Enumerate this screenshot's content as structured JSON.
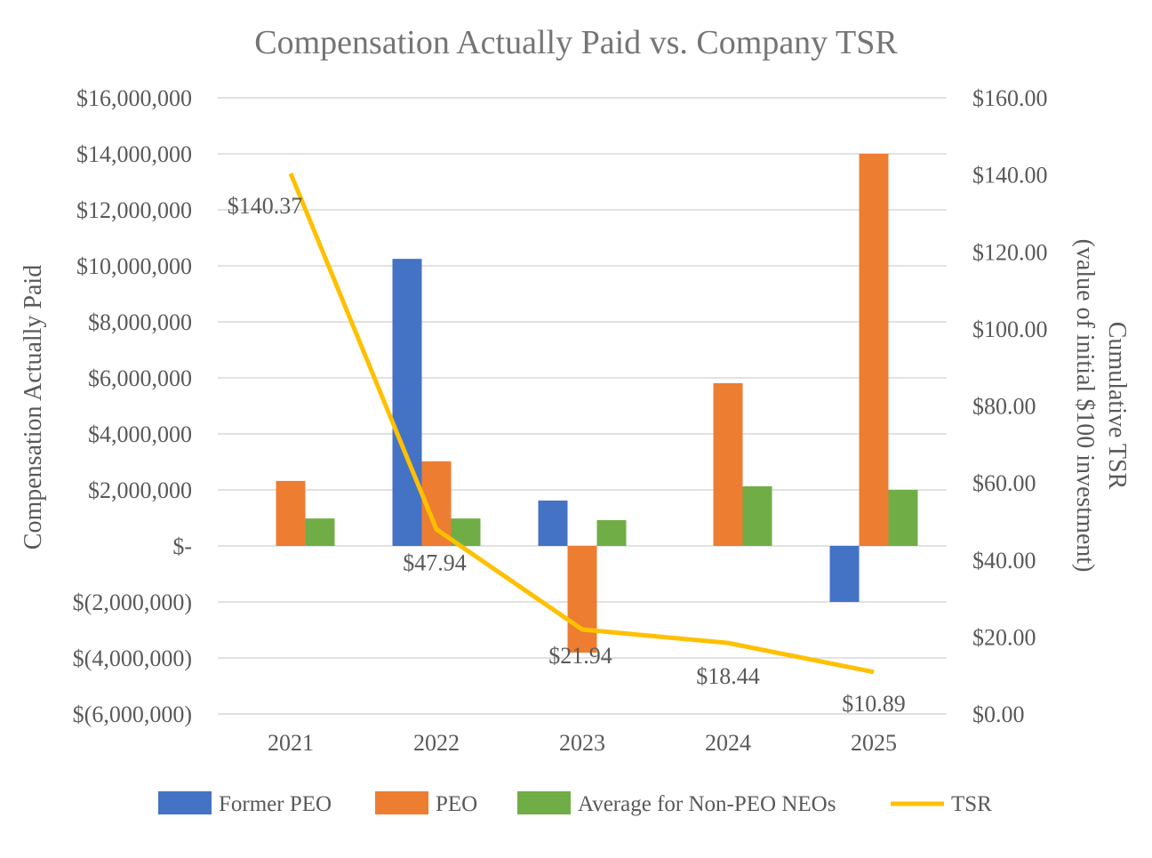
{
  "chart_data": {
    "type": "bar",
    "title": "Compensation Actually Paid vs. Company TSR",
    "categories": [
      "2021",
      "2022",
      "2023",
      "2024",
      "2025"
    ],
    "ylabel": "Compensation Actually Paid",
    "y2label_line1": "Cumulative TSR",
    "y2label_line2": "(value of initial $100 investment)",
    "ylim": [
      -6000000,
      16000000
    ],
    "y2lim": [
      0,
      160
    ],
    "yticks": [
      "$(6,000,000)",
      "$(4,000,000)",
      "$(2,000,000)",
      "$-",
      "$2,000,000",
      "$4,000,000",
      "$6,000,000",
      "$8,000,000",
      "$10,000,000",
      "$12,000,000",
      "$14,000,000",
      "$16,000,000"
    ],
    "y2ticks": [
      "$0.00",
      "$20.00",
      "$40.00",
      "$60.00",
      "$80.00",
      "$100.00",
      "$120.00",
      "$140.00",
      "$160.00"
    ],
    "grid": true,
    "legend_position": "bottom",
    "series": [
      {
        "name": "Former PEO",
        "type": "bar",
        "color": "#4472C4",
        "values": [
          null,
          10250000,
          1620000,
          null,
          -2000000
        ]
      },
      {
        "name": "PEO",
        "type": "bar",
        "color": "#ED7D31",
        "values": [
          2320000,
          3020000,
          -3810000,
          5810000,
          14000000
        ]
      },
      {
        "name": "Average for Non-PEO NEOs",
        "type": "bar",
        "color": "#70AD47",
        "values": [
          980000,
          980000,
          920000,
          2130000,
          2000000
        ]
      },
      {
        "name": "TSR",
        "type": "line",
        "axis": "right",
        "color": "#FFC000",
        "values": [
          140.37,
          47.94,
          21.94,
          18.44,
          10.89
        ],
        "labels": [
          "$140.37",
          "$47.94",
          "$21.94",
          "$18.44",
          "$10.89"
        ]
      }
    ]
  }
}
